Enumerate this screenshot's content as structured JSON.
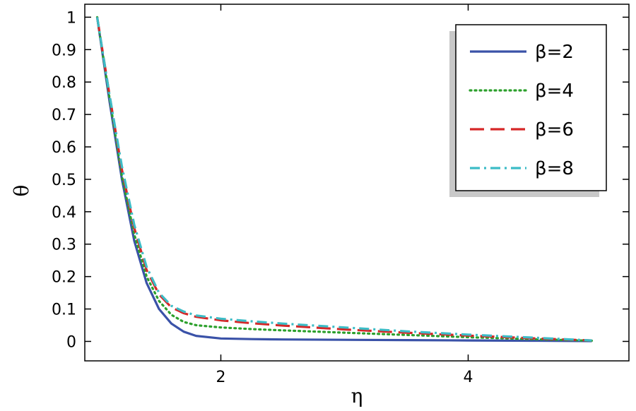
{
  "chart_data": {
    "type": "line",
    "xlabel": "η",
    "ylabel": "θ",
    "xlim": [
      0.9,
      5.3
    ],
    "ylim": [
      -0.06,
      1.04
    ],
    "xticks": [
      2,
      4
    ],
    "yticks": [
      0,
      0.1,
      0.2,
      0.3,
      0.4,
      0.5,
      0.6,
      0.7,
      0.8,
      0.9,
      1
    ],
    "ytick_labels": [
      "0",
      "0.1",
      "0.2",
      "0.3",
      "0.4",
      "0.5",
      "0.6",
      "0.7",
      "0.8",
      "0.9",
      "1"
    ],
    "xtick_labels": [
      "2",
      "4"
    ],
    "grid": false,
    "legend_position": "top-right",
    "x": [
      1.0,
      1.1,
      1.2,
      1.3,
      1.4,
      1.5,
      1.6,
      1.7,
      1.8,
      2.0,
      2.25,
      2.5,
      3.0,
      3.5,
      4.0,
      4.5,
      5.0
    ],
    "series": [
      {
        "name": "β=2",
        "color": "#3a52a8",
        "dash": "solid",
        "values": [
          1.0,
          0.74,
          0.5,
          0.31,
          0.18,
          0.1,
          0.055,
          0.03,
          0.017,
          0.009,
          0.007,
          0.006,
          0.005,
          0.004,
          0.003,
          0.002,
          0.001
        ]
      },
      {
        "name": "β=4",
        "color": "#2ca02c",
        "dash": "dotted",
        "values": [
          1.0,
          0.75,
          0.51,
          0.33,
          0.2,
          0.125,
          0.082,
          0.06,
          0.05,
          0.043,
          0.038,
          0.034,
          0.027,
          0.02,
          0.013,
          0.007,
          0.002
        ]
      },
      {
        "name": "β=6",
        "color": "#d62728",
        "dash": "dashed",
        "values": [
          1.0,
          0.76,
          0.53,
          0.35,
          0.22,
          0.145,
          0.105,
          0.087,
          0.076,
          0.065,
          0.056,
          0.049,
          0.037,
          0.027,
          0.018,
          0.01,
          0.003
        ]
      },
      {
        "name": "β=8",
        "color": "#3cbcc6",
        "dash": "dashdot",
        "values": [
          1.0,
          0.76,
          0.54,
          0.36,
          0.23,
          0.15,
          0.11,
          0.092,
          0.08,
          0.07,
          0.062,
          0.055,
          0.043,
          0.031,
          0.021,
          0.012,
          0.003
        ]
      }
    ]
  }
}
